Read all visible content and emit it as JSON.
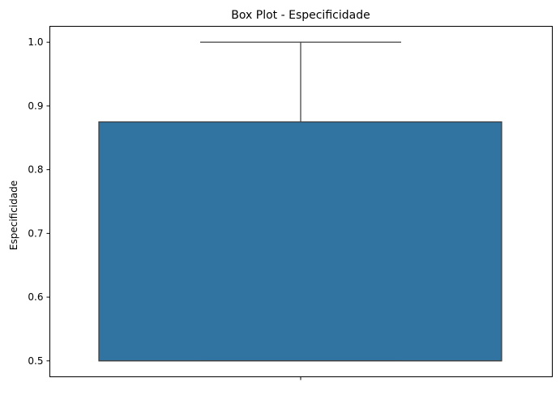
{
  "chart_data": {
    "type": "box",
    "title": "Box Plot - Especificidade",
    "xlabel": "",
    "ylabel": "Especificidade",
    "ylim": [
      0.475,
      1.025
    ],
    "yticks": [
      "0.5",
      "0.6",
      "0.7",
      "0.8",
      "0.9",
      "1.0"
    ],
    "grid": false,
    "legend": "none",
    "box": {
      "min": 0.5,
      "q1": 0.5,
      "median": 0.5,
      "q3": 0.875,
      "max": 1.0
    },
    "colors": {
      "box_fill": "#3274a1",
      "line": "#3f3f3f"
    }
  }
}
